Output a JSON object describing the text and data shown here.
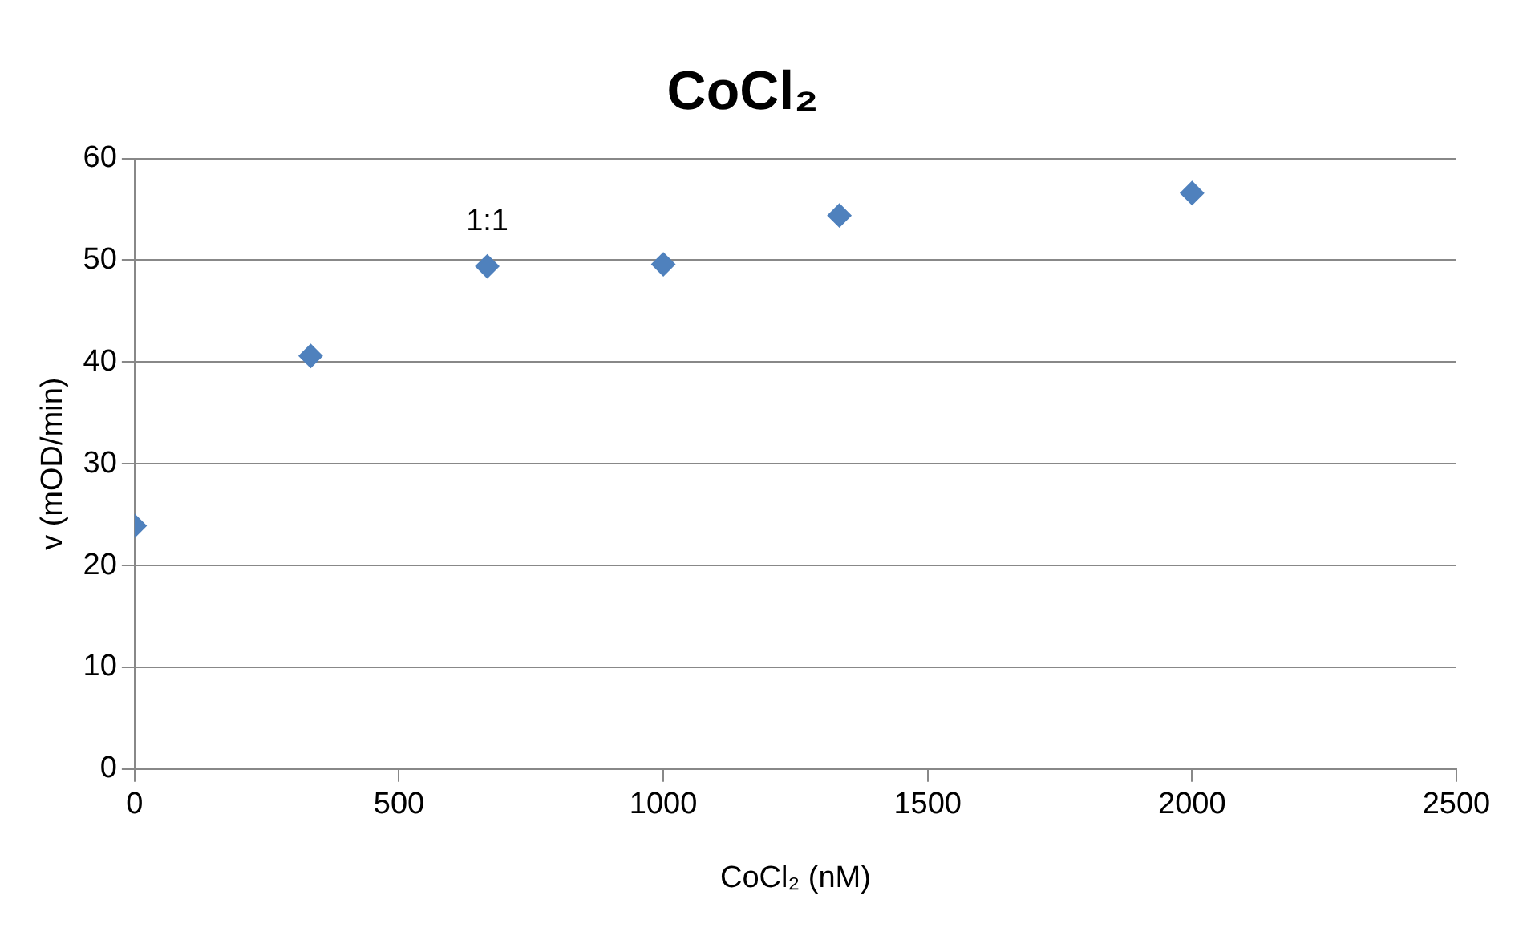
{
  "chart_data": {
    "type": "scatter",
    "title": "CoCl₂",
    "xlabel": "CoCl₂ (nM)",
    "ylabel": "v (mOD/min)",
    "x": [
      0,
      333,
      667,
      1000,
      1333,
      2000
    ],
    "series": [
      {
        "color": "#4f81bd",
        "values": [
          23.9,
          40.6,
          49.4,
          49.6,
          54.4,
          56.6
        ]
      }
    ],
    "xlim": [
      0,
      2500
    ],
    "xticks": [
      0,
      500,
      1000,
      1500,
      2000,
      2500
    ],
    "ylim": [
      0,
      60
    ],
    "yticks": [
      0,
      10,
      20,
      30,
      40,
      50,
      60
    ],
    "grid": "y",
    "legend": false,
    "marker": "diamond",
    "annotations": [
      {
        "text": "1:1",
        "x": 667,
        "y": 49.4
      }
    ]
  }
}
